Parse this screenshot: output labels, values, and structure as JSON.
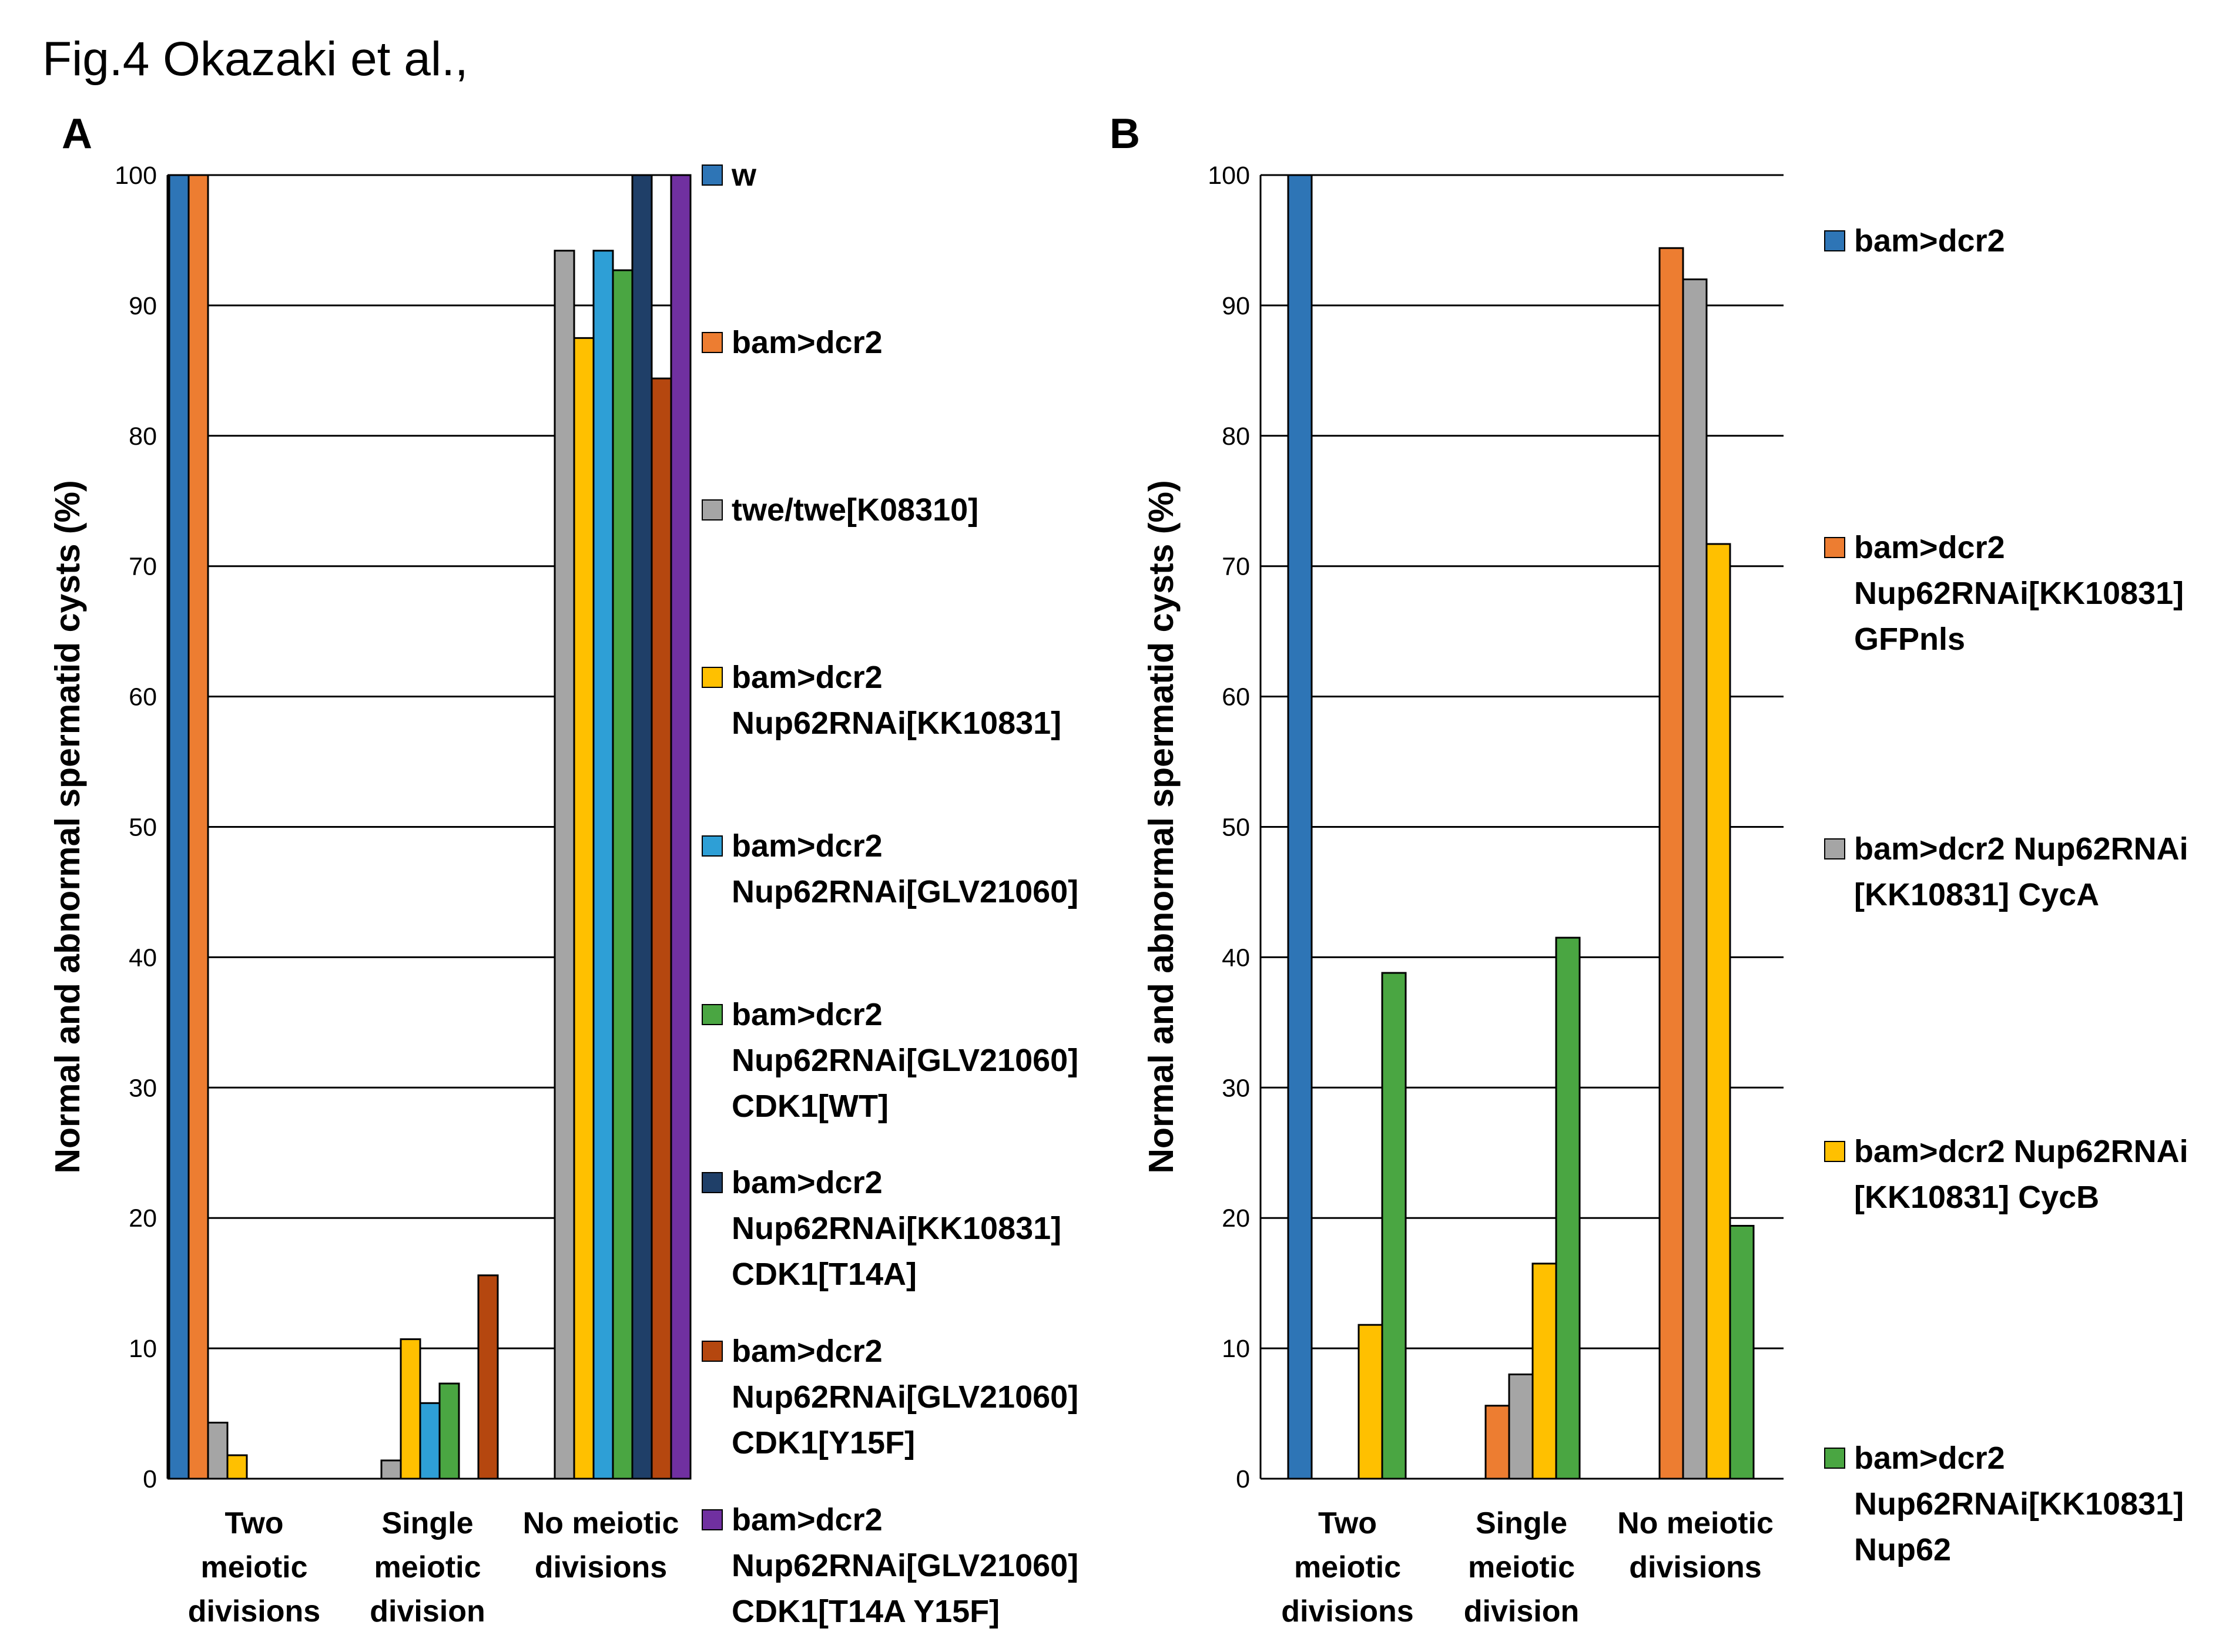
{
  "figure": {
    "title": "Fig.4 Okazaki et al.,"
  },
  "colors": {
    "blue": "#2e75b6",
    "orange": "#ed7d31",
    "gray": "#a5a5a5",
    "yellow": "#ffc000",
    "lightblue": "#2e9fd6",
    "green": "#4aa642",
    "navy": "#1f3f68",
    "rust": "#b5470f",
    "purple": "#7030a0"
  },
  "chart_data": [
    {
      "panel": "A",
      "type": "bar",
      "ylabel": "Normal and abnormal spermatid cysts (%)",
      "ylim": [
        0,
        100
      ],
      "yticks": [
        "0",
        "10",
        "20",
        "30",
        "40",
        "50",
        "60",
        "70",
        "80",
        "90",
        "100"
      ],
      "grid": true,
      "categories": [
        [
          "Two",
          "meiotic",
          "divisions"
        ],
        [
          "Single",
          "meiotic",
          "division"
        ],
        [
          "No meiotic",
          "divisions"
        ]
      ],
      "series": [
        {
          "name": [
            "w"
          ],
          "color": "#2e75b6",
          "values": [
            100,
            0,
            0
          ]
        },
        {
          "name": [
            "bam>dcr2"
          ],
          "color": "#ed7d31",
          "values": [
            100,
            0,
            0
          ]
        },
        {
          "name": [
            "twe/twe[K08310]"
          ],
          "color": "#a5a5a5",
          "values": [
            4.3,
            1.4,
            94.2
          ]
        },
        {
          "name": [
            "bam>dcr2",
            "Nup62RNAi[KK10831]"
          ],
          "color": "#ffc000",
          "values": [
            1.8,
            10.7,
            87.5
          ]
        },
        {
          "name": [
            "bam>dcr2",
            "Nup62RNAi[GLV21060]"
          ],
          "color": "#2e9fd6",
          "values": [
            0,
            5.8,
            94.2
          ]
        },
        {
          "name": [
            "bam>dcr2",
            "Nup62RNAi[GLV21060]",
            "CDK1[WT]"
          ],
          "color": "#4aa642",
          "values": [
            0,
            7.3,
            92.7
          ]
        },
        {
          "name": [
            "bam>dcr2",
            "Nup62RNAi[KK10831]",
            "CDK1[T14A]"
          ],
          "color": "#1f3f68",
          "values": [
            0,
            0,
            100
          ]
        },
        {
          "name": [
            "bam>dcr2",
            "Nup62RNAi[GLV21060]",
            "CDK1[Y15F]"
          ],
          "color": "#b5470f",
          "values": [
            0,
            15.6,
            84.4
          ]
        },
        {
          "name": [
            "bam>dcr2",
            "Nup62RNAi[GLV21060]",
            "CDK1[T14A Y15F]"
          ],
          "color": "#7030a0",
          "values": [
            0,
            0,
            100
          ]
        }
      ]
    },
    {
      "panel": "B",
      "type": "bar",
      "ylabel": "Normal and abnormal spermatid cysts (%)",
      "ylim": [
        0,
        100
      ],
      "yticks": [
        "0",
        "10",
        "20",
        "30",
        "40",
        "50",
        "60",
        "70",
        "80",
        "90",
        "100"
      ],
      "grid": true,
      "categories": [
        [
          "Two",
          "meiotic",
          "divisions"
        ],
        [
          "Single",
          "meiotic",
          "division"
        ],
        [
          "No meiotic",
          "divisions"
        ]
      ],
      "series": [
        {
          "name": [
            "bam>dcr2"
          ],
          "color": "#2e75b6",
          "values": [
            100,
            0,
            0
          ]
        },
        {
          "name": [
            "bam>dcr2",
            "Nup62RNAi[KK10831]",
            "GFPnls"
          ],
          "color": "#ed7d31",
          "values": [
            0,
            5.6,
            94.4
          ]
        },
        {
          "name": [
            "bam>dcr2 Nup62RNAi",
            "[KK10831]  CycA"
          ],
          "color": "#a5a5a5",
          "values": [
            0,
            8.0,
            92.0
          ]
        },
        {
          "name": [
            "bam>dcr2 Nup62RNAi",
            "[KK10831]  CycB"
          ],
          "color": "#ffc000",
          "values": [
            11.8,
            16.5,
            71.7
          ]
        },
        {
          "name": [
            "bam>dcr2",
            "Nup62RNAi[KK10831]",
            "Nup62"
          ],
          "color": "#4aa642",
          "values": [
            38.8,
            41.5,
            19.4
          ]
        }
      ]
    }
  ]
}
